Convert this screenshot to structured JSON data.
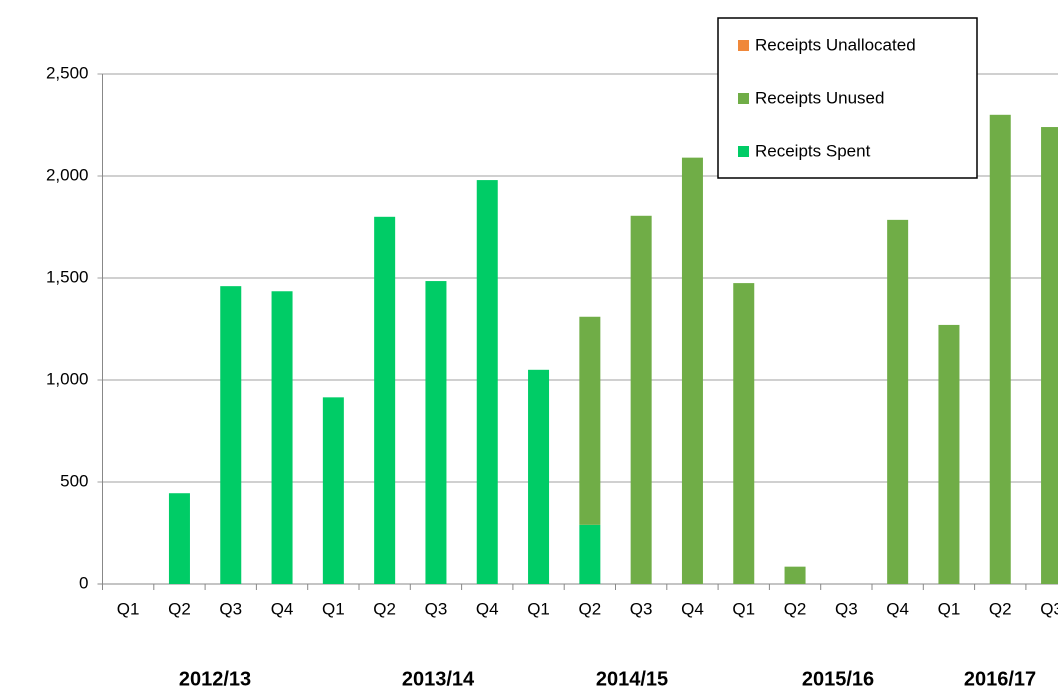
{
  "chart_data": {
    "type": "stacked_bar",
    "categories": [
      "Q1",
      "Q2",
      "Q3",
      "Q4",
      "Q1",
      "Q2",
      "Q3",
      "Q4",
      "Q1",
      "Q2",
      "Q3",
      "Q4",
      "Q1",
      "Q2",
      "Q3",
      "Q4",
      "Q1",
      "Q2",
      "Q3"
    ],
    "year_labels": [
      "2012/13",
      "2013/14",
      "2014/15",
      "2015/16",
      "2016/17"
    ],
    "series": [
      {
        "name": "Receipts Spent",
        "color": "#00cc66",
        "values": [
          0,
          445,
          1460,
          1435,
          915,
          1800,
          1485,
          1980,
          1050,
          290,
          0,
          0,
          0,
          0,
          0,
          0,
          0,
          0,
          0
        ]
      },
      {
        "name": "Receipts Unused",
        "color": "#70ad47",
        "values": [
          0,
          0,
          0,
          0,
          0,
          0,
          0,
          0,
          0,
          1020,
          1805,
          2090,
          1475,
          85,
          0,
          1785,
          1270,
          2300,
          2240
        ]
      },
      {
        "name": "Receipts Unallocated",
        "color": "#f0883a",
        "values": [
          0,
          0,
          0,
          0,
          0,
          0,
          0,
          0,
          0,
          0,
          0,
          0,
          0,
          0,
          0,
          0,
          0,
          0,
          0
        ]
      }
    ],
    "ylim": [
      0,
      2500
    ],
    "yticks": [
      0,
      500,
      {
        "value": 1000,
        "label": "1,000"
      },
      {
        "value": 1500,
        "label": "1,500"
      },
      {
        "value": 2000,
        "label": "2,000"
      },
      {
        "value": 2500,
        "label": "2,500"
      }
    ],
    "grid": true,
    "legend": "top-right"
  }
}
